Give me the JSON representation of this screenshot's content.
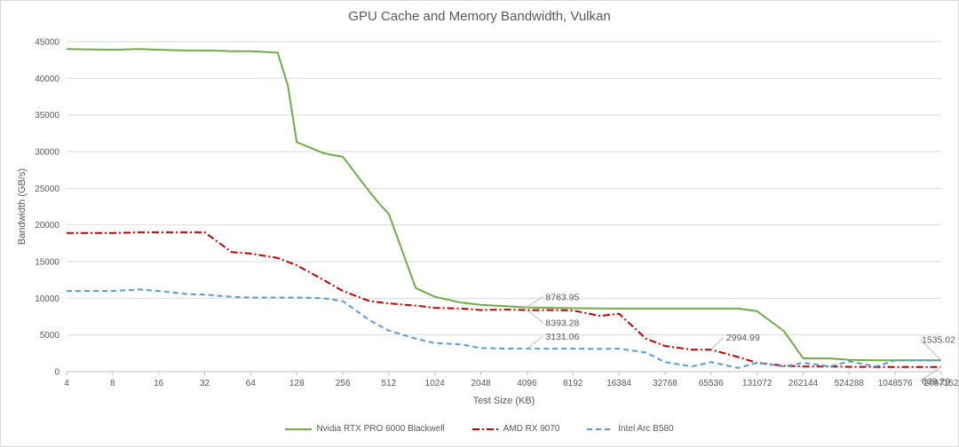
{
  "chart_data": {
    "type": "line",
    "title": "GPU Cache and Memory Bandwidth, Vulkan",
    "xlabel": "Test Size (KB)",
    "ylabel": "Bandwidth (GB/s)",
    "ylim": [
      0,
      45000
    ],
    "yticks": [
      "0",
      "5000",
      "10000",
      "15000",
      "20000",
      "25000",
      "30000",
      "35000",
      "40000",
      "45000"
    ],
    "xscale": "log2",
    "xticks": [
      "4",
      "8",
      "16",
      "32",
      "64",
      "128",
      "256",
      "512",
      "1024",
      "2048",
      "4096",
      "8192",
      "16384",
      "32768",
      "65536",
      "131072",
      "262144",
      "524288",
      "1048576",
      "2097152"
    ],
    "grid": "horizontal",
    "legend_position": "bottom",
    "series": [
      {
        "name": "Nvidia RTX PRO 6000 Blackwell",
        "color": "#70ad47",
        "dash": "solid",
        "x": [
          4,
          8,
          12,
          16,
          24,
          32,
          48,
          64,
          96,
          112,
          128,
          192,
          224,
          256,
          384,
          448,
          512,
          768,
          1024,
          1536,
          2048,
          3072,
          4096,
          6144,
          8192,
          12288,
          16384,
          24576,
          32768,
          49152,
          65536,
          98304,
          131072,
          196608,
          262144,
          393216,
          524288,
          786432,
          1048576,
          1572864,
          2097152
        ],
        "y": [
          44000,
          43900,
          44000,
          43900,
          43800,
          43800,
          43700,
          43700,
          43500,
          39000,
          31300,
          29800,
          29500,
          29300,
          24500,
          22800,
          21500,
          11400,
          10200,
          9400,
          9100,
          8900,
          8764,
          8700,
          8650,
          8620,
          8600,
          8600,
          8600,
          8600,
          8600,
          8600,
          8250,
          5500,
          1800,
          1800,
          1600,
          1550,
          1550,
          1535,
          1535
        ]
      },
      {
        "name": "AMD RX 9070",
        "color": "#c00000",
        "dash": "dashdot",
        "x": [
          4,
          8,
          12,
          16,
          24,
          32,
          48,
          64,
          96,
          128,
          192,
          256,
          384,
          512,
          768,
          1024,
          1536,
          2048,
          3072,
          4096,
          6144,
          8192,
          12288,
          16384,
          24576,
          32768,
          49152,
          65536,
          98304,
          131072,
          196608,
          262144,
          393216,
          524288,
          786432,
          1048576,
          1572864,
          2097152
        ],
        "y": [
          18900,
          18900,
          19000,
          19000,
          19000,
          19000,
          16300,
          16100,
          15500,
          14500,
          12500,
          11000,
          9600,
          9300,
          9000,
          8700,
          8600,
          8400,
          8450,
          8393,
          8393,
          8350,
          7600,
          7900,
          4500,
          3500,
          2995,
          2995,
          2000,
          1200,
          800,
          700,
          700,
          650,
          640,
          639,
          639,
          639
        ]
      },
      {
        "name": "Intel Arc B580",
        "color": "#5b9bd5",
        "dash": "dashed",
        "x": [
          4,
          8,
          12,
          16,
          24,
          32,
          48,
          64,
          96,
          128,
          192,
          256,
          384,
          512,
          768,
          1024,
          1536,
          2048,
          3072,
          4096,
          6144,
          8192,
          12288,
          16384,
          24576,
          32768,
          49152,
          65536,
          98304,
          131072,
          196608,
          262144,
          393216,
          524288,
          786432,
          1048576,
          1572864,
          2097152
        ],
        "y": [
          11000,
          11000,
          11200,
          11000,
          10600,
          10500,
          10200,
          10100,
          10100,
          10100,
          10000,
          9600,
          7000,
          5600,
          4500,
          3900,
          3700,
          3200,
          3150,
          3131,
          3131,
          3131,
          3100,
          3131,
          2600,
          1300,
          700,
          1300,
          500,
          1200,
          700,
          1200,
          700,
          1400,
          700,
          1535,
          1535,
          1535
        ]
      }
    ],
    "annotations": [
      {
        "label": "8763.95",
        "x": 4096,
        "y": 8764,
        "series": "Nvidia RTX PRO 6000 Blackwell"
      },
      {
        "label": "8393.28",
        "x": 4096,
        "y": 8393,
        "series": "AMD RX 9070"
      },
      {
        "label": "3131.06",
        "x": 4096,
        "y": 3131,
        "series": "Intel Arc B580"
      },
      {
        "label": "2994.99",
        "x": 65536,
        "y": 2995,
        "series": "AMD RX 9070"
      },
      {
        "label": "1535.02",
        "x": 2097152,
        "y": 1535,
        "series": "Intel Arc B580"
      },
      {
        "label": "639.29",
        "x": 2097152,
        "y": 639,
        "series": "AMD RX 9070"
      }
    ]
  }
}
